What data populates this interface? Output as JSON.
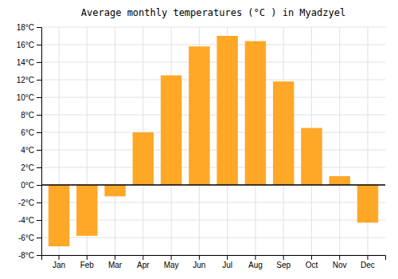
{
  "chart_data": {
    "type": "bar",
    "title": "Average monthly temperatures (°C ) in Myadzyel",
    "categories": [
      "Jan",
      "Feb",
      "Mar",
      "Apr",
      "May",
      "Jun",
      "Jul",
      "Aug",
      "Sep",
      "Oct",
      "Nov",
      "Dec"
    ],
    "values": [
      -7.0,
      -5.8,
      -1.3,
      6.0,
      12.5,
      15.8,
      17.0,
      16.4,
      11.8,
      6.5,
      1.0,
      -4.3
    ],
    "color": "#FFA726",
    "ylim": [
      -8,
      18
    ],
    "yticks": [
      {
        "value": -8,
        "label": "-8°C"
      },
      {
        "value": -6,
        "label": "-6°C"
      },
      {
        "value": -4,
        "label": "-4°C"
      },
      {
        "value": -2,
        "label": "-2°C"
      },
      {
        "value": 0,
        "label": "0°C"
      },
      {
        "value": 2,
        "label": "2°C"
      },
      {
        "value": 4,
        "label": "4°C"
      },
      {
        "value": 6,
        "label": "6°C"
      },
      {
        "value": 8,
        "label": "8°C"
      },
      {
        "value": 10,
        "label": "10°C"
      },
      {
        "value": 12,
        "label": "12°C"
      },
      {
        "value": 14,
        "label": "14°C"
      },
      {
        "value": 16,
        "label": "16°C"
      },
      {
        "value": 18,
        "label": "18°C"
      }
    ],
    "grid": true
  }
}
